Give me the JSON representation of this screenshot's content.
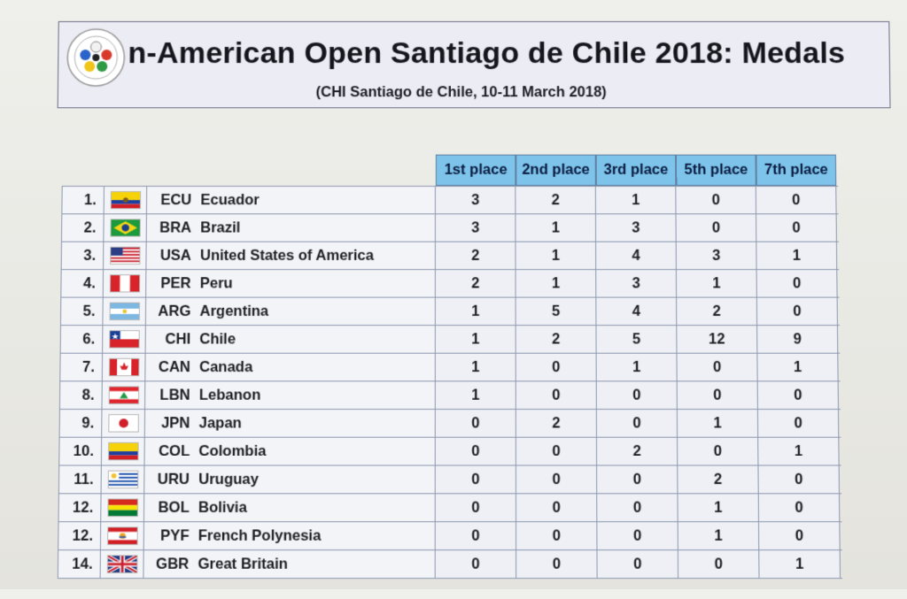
{
  "header": {
    "title": "n-American Open Santiago de Chile 2018: Medals",
    "subtitle": "(CHI Santiago de Chile, 10-11 March 2018)",
    "logo_icon": "judo-federation-logo-icon"
  },
  "columns": [
    "1st place",
    "2nd place",
    "3rd place",
    "5th place",
    "7th place"
  ],
  "rows": [
    {
      "rank": "1.",
      "code": "ECU",
      "name": "Ecuador",
      "flag": "flag-ecuador-icon",
      "values": [
        "3",
        "2",
        "1",
        "0",
        "0"
      ]
    },
    {
      "rank": "2.",
      "code": "BRA",
      "name": "Brazil",
      "flag": "flag-brazil-icon",
      "values": [
        "3",
        "1",
        "3",
        "0",
        "0"
      ]
    },
    {
      "rank": "3.",
      "code": "USA",
      "name": "United States of America",
      "flag": "flag-usa-icon",
      "values": [
        "2",
        "1",
        "4",
        "3",
        "1"
      ]
    },
    {
      "rank": "4.",
      "code": "PER",
      "name": "Peru",
      "flag": "flag-peru-icon",
      "values": [
        "2",
        "1",
        "3",
        "1",
        "0"
      ]
    },
    {
      "rank": "5.",
      "code": "ARG",
      "name": "Argentina",
      "flag": "flag-argentina-icon",
      "values": [
        "1",
        "5",
        "4",
        "2",
        "0"
      ]
    },
    {
      "rank": "6.",
      "code": "CHI",
      "name": "Chile",
      "flag": "flag-chile-icon",
      "values": [
        "1",
        "2",
        "5",
        "12",
        "9"
      ]
    },
    {
      "rank": "7.",
      "code": "CAN",
      "name": "Canada",
      "flag": "flag-canada-icon",
      "values": [
        "1",
        "0",
        "1",
        "0",
        "1"
      ]
    },
    {
      "rank": "8.",
      "code": "LBN",
      "name": "Lebanon",
      "flag": "flag-lebanon-icon",
      "values": [
        "1",
        "0",
        "0",
        "0",
        "0"
      ]
    },
    {
      "rank": "9.",
      "code": "JPN",
      "name": "Japan",
      "flag": "flag-japan-icon",
      "values": [
        "0",
        "2",
        "0",
        "1",
        "0"
      ]
    },
    {
      "rank": "10.",
      "code": "COL",
      "name": "Colombia",
      "flag": "flag-colombia-icon",
      "values": [
        "0",
        "0",
        "2",
        "0",
        "1"
      ]
    },
    {
      "rank": "11.",
      "code": "URU",
      "name": "Uruguay",
      "flag": "flag-uruguay-icon",
      "values": [
        "0",
        "0",
        "0",
        "2",
        "0"
      ]
    },
    {
      "rank": "12.",
      "code": "BOL",
      "name": "Bolivia",
      "flag": "flag-bolivia-icon",
      "values": [
        "0",
        "0",
        "0",
        "1",
        "0"
      ]
    },
    {
      "rank": "12.",
      "code": "PYF",
      "name": "French Polynesia",
      "flag": "flag-french-polynesia-icon",
      "values": [
        "0",
        "0",
        "0",
        "1",
        "0"
      ]
    },
    {
      "rank": "14.",
      "code": "GBR",
      "name": "Great Britain",
      "flag": "flag-great-britain-icon",
      "values": [
        "0",
        "0",
        "0",
        "0",
        "1"
      ]
    }
  ],
  "chart_data": {
    "type": "table",
    "columns": [
      "1st place",
      "2nd place",
      "3rd place",
      "5th place",
      "7th place"
    ],
    "rows": [
      {
        "rank": "1.",
        "code": "ECU",
        "name": "Ecuador",
        "values": [
          3,
          2,
          1,
          0,
          0
        ]
      },
      {
        "rank": "2.",
        "code": "BRA",
        "name": "Brazil",
        "values": [
          3,
          1,
          3,
          0,
          0
        ]
      },
      {
        "rank": "3.",
        "code": "USA",
        "name": "United States of America",
        "values": [
          2,
          1,
          4,
          3,
          1
        ]
      },
      {
        "rank": "4.",
        "code": "PER",
        "name": "Peru",
        "values": [
          2,
          1,
          3,
          1,
          0
        ]
      },
      {
        "rank": "5.",
        "code": "ARG",
        "name": "Argentina",
        "values": [
          1,
          5,
          4,
          2,
          0
        ]
      },
      {
        "rank": "6.",
        "code": "CHI",
        "name": "Chile",
        "values": [
          1,
          2,
          5,
          12,
          9
        ]
      },
      {
        "rank": "7.",
        "code": "CAN",
        "name": "Canada",
        "values": [
          1,
          0,
          1,
          0,
          1
        ]
      },
      {
        "rank": "8.",
        "code": "LBN",
        "name": "Lebanon",
        "values": [
          1,
          0,
          0,
          0,
          0
        ]
      },
      {
        "rank": "9.",
        "code": "JPN",
        "name": "Japan",
        "values": [
          0,
          2,
          0,
          1,
          0
        ]
      },
      {
        "rank": "10.",
        "code": "COL",
        "name": "Colombia",
        "values": [
          0,
          0,
          2,
          0,
          1
        ]
      },
      {
        "rank": "11.",
        "code": "URU",
        "name": "Uruguay",
        "values": [
          0,
          0,
          0,
          2,
          0
        ]
      },
      {
        "rank": "12.",
        "code": "BOL",
        "name": "Bolivia",
        "values": [
          0,
          0,
          0,
          1,
          0
        ]
      },
      {
        "rank": "12.",
        "code": "PYF",
        "name": "French Polynesia",
        "values": [
          0,
          0,
          0,
          1,
          0
        ]
      },
      {
        "rank": "14.",
        "code": "GBR",
        "name": "Great Britain",
        "values": [
          0,
          0,
          0,
          0,
          1
        ]
      }
    ]
  }
}
